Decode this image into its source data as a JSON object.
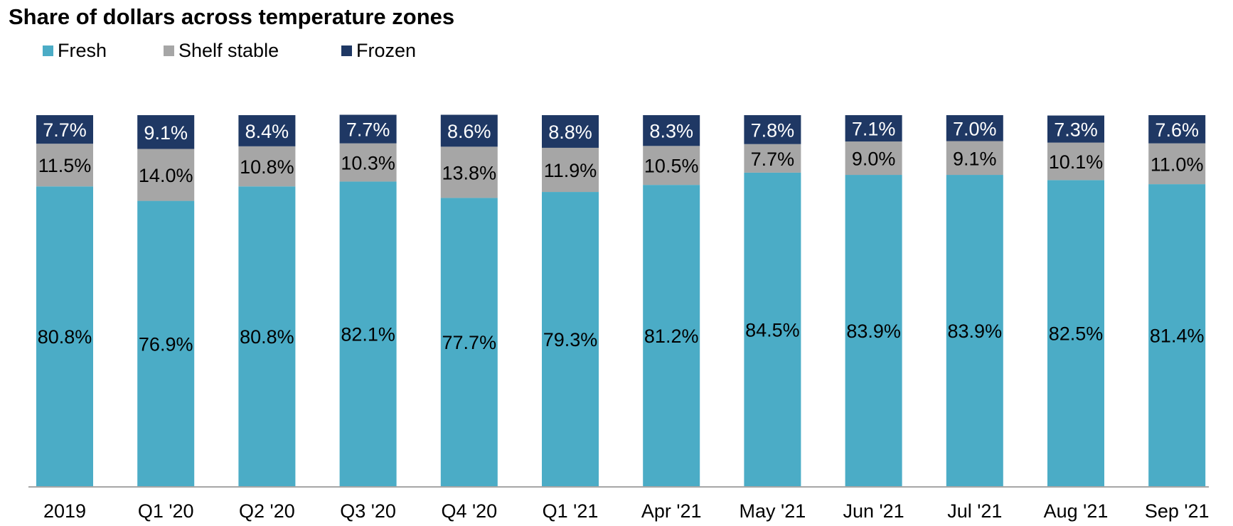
{
  "chart_data": {
    "type": "bar",
    "stacked": true,
    "title": "Share of dollars across temperature zones",
    "categories": [
      "2019",
      "Q1 '20",
      "Q2 '20",
      "Q3 '20",
      "Q4 '20",
      "Q1 '21",
      "Apr '21",
      "May '21",
      "Jun '21",
      "Jul '21",
      "Aug '21",
      "Sep '21"
    ],
    "series": [
      {
        "name": "Fresh",
        "color": "#4BACC6",
        "values": [
          80.8,
          76.9,
          80.8,
          82.1,
          77.7,
          79.3,
          81.2,
          84.5,
          83.9,
          83.9,
          82.5,
          81.4
        ],
        "labels": [
          "80.8%",
          "76.9%",
          "80.8%",
          "82.1%",
          "77.7%",
          "79.3%",
          "81.2%",
          "84.5%",
          "83.9%",
          "83.9%",
          "82.5%",
          "81.4%"
        ]
      },
      {
        "name": "Shelf stable",
        "color": "#A6A6A6",
        "values": [
          11.5,
          14.0,
          10.8,
          10.3,
          13.8,
          11.9,
          10.5,
          7.7,
          9.0,
          9.1,
          10.1,
          11.0
        ],
        "labels": [
          "11.5%",
          "14.0%",
          "10.8%",
          "10.3%",
          "13.8%",
          "11.9%",
          "10.5%",
          "7.7%",
          "9.0%",
          "9.1%",
          "10.1%",
          "11.0%"
        ]
      },
      {
        "name": "Frozen",
        "color": "#1F3864",
        "values": [
          7.7,
          9.1,
          8.4,
          7.7,
          8.6,
          8.8,
          8.3,
          7.8,
          7.1,
          7.0,
          7.3,
          7.6
        ],
        "labels": [
          "7.7%",
          "9.1%",
          "8.4%",
          "7.7%",
          "8.6%",
          "8.8%",
          "8.3%",
          "7.8%",
          "7.1%",
          "7.0%",
          "7.3%",
          "7.6%"
        ]
      }
    ],
    "ylim": [
      0,
      100
    ],
    "grid": false,
    "legend_position": "top-left"
  }
}
